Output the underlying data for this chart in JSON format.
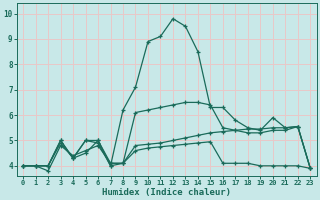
{
  "xlabel": "Humidex (Indice chaleur)",
  "xlim": [
    -0.5,
    23.5
  ],
  "ylim": [
    3.6,
    10.4
  ],
  "yticks": [
    4,
    5,
    6,
    7,
    8,
    9,
    10
  ],
  "xticks": [
    0,
    1,
    2,
    3,
    4,
    5,
    6,
    7,
    8,
    9,
    10,
    11,
    12,
    13,
    14,
    15,
    16,
    17,
    18,
    19,
    20,
    21,
    22,
    23
  ],
  "background_color": "#c8e8e8",
  "grid_color": "#e8c8c8",
  "line_color": "#1a6b5a",
  "series": [
    {
      "x": [
        0,
        1,
        2,
        3,
        4,
        5,
        6,
        7,
        8,
        9,
        10,
        11,
        12,
        13,
        14,
        15,
        16,
        17,
        18,
        19,
        20,
        21,
        22,
        23
      ],
      "y": [
        4.0,
        4.0,
        4.0,
        5.0,
        4.3,
        4.5,
        5.0,
        4.1,
        4.1,
        4.8,
        4.85,
        4.9,
        5.0,
        5.1,
        5.2,
        5.3,
        5.35,
        5.4,
        5.45,
        5.45,
        5.5,
        5.5,
        5.55,
        3.9
      ]
    },
    {
      "x": [
        0,
        1,
        2,
        3,
        4,
        5,
        6,
        7,
        8,
        9,
        10,
        11,
        12,
        13,
        14,
        15,
        16,
        17,
        18,
        19,
        20,
        21,
        22,
        23
      ],
      "y": [
        4.0,
        4.0,
        3.8,
        4.8,
        4.4,
        4.6,
        4.8,
        4.1,
        4.1,
        4.6,
        4.7,
        4.75,
        4.8,
        4.85,
        4.9,
        4.95,
        4.1,
        4.1,
        4.1,
        4.0,
        4.0,
        4.0,
        4.0,
        3.9
      ]
    },
    {
      "x": [
        0,
        1,
        2,
        3,
        4,
        5,
        6,
        7,
        8,
        9,
        10,
        11,
        12,
        13,
        14,
        15,
        16,
        17,
        18,
        19,
        20,
        21,
        22,
        23
      ],
      "y": [
        4.0,
        4.0,
        4.0,
        5.0,
        4.3,
        5.0,
        4.9,
        4.0,
        4.1,
        6.1,
        6.2,
        6.3,
        6.4,
        6.5,
        6.5,
        6.4,
        5.5,
        5.4,
        5.3,
        5.3,
        5.4,
        5.4,
        5.55,
        3.9
      ]
    },
    {
      "x": [
        0,
        1,
        2,
        3,
        4,
        5,
        6,
        7,
        8,
        9,
        10,
        11,
        12,
        13,
        14,
        15,
        16,
        17,
        18,
        19,
        20,
        21,
        22,
        23
      ],
      "y": [
        4.0,
        4.0,
        4.0,
        4.9,
        4.3,
        5.0,
        5.0,
        4.0,
        6.2,
        7.1,
        8.9,
        9.1,
        9.8,
        9.5,
        8.5,
        6.3,
        6.3,
        5.8,
        5.5,
        5.4,
        5.9,
        5.5,
        5.55,
        3.9
      ]
    }
  ]
}
